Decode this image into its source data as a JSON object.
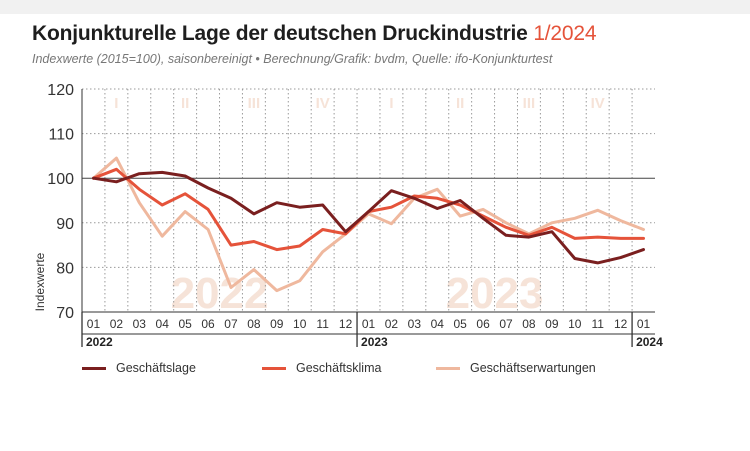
{
  "header": {
    "title": "Konjunkturelle Lage der deutschen Druckindustrie",
    "title_accent": "1/2024",
    "subtitle": "Indexwerte (2015=100), saisonbereinigt • Berechnung/Grafik: bvdm, Quelle: ifo-Konjunkturtest"
  },
  "colors": {
    "geschaeftslage": "#7a1f1f",
    "geschaeftsklima": "#e5533a",
    "geschaeftserwartungen": "#efb89e",
    "watermark": "#f6e3d8",
    "accent": "#e5533a"
  },
  "chart_data": {
    "type": "line",
    "ylabel": "Indexwerte",
    "ylim": [
      70,
      120
    ],
    "yticks": [
      70,
      80,
      90,
      100,
      110,
      120
    ],
    "reference_line": 100,
    "grid": "dotted",
    "legend_position": "bottom",
    "categories": [
      "01",
      "02",
      "03",
      "04",
      "05",
      "06",
      "07",
      "08",
      "09",
      "10",
      "11",
      "12",
      "01",
      "02",
      "03",
      "04",
      "05",
      "06",
      "07",
      "08",
      "09",
      "10",
      "11",
      "12",
      "01"
    ],
    "year_labels": [
      {
        "label": "2022",
        "index": 0
      },
      {
        "label": "2023",
        "index": 12
      },
      {
        "label": "2024",
        "index": 24
      }
    ],
    "watermarks": [
      {
        "label": "2022",
        "from": 0,
        "to": 11
      },
      {
        "label": "2023",
        "from": 12,
        "to": 23
      }
    ],
    "quarters": [
      {
        "label": "I",
        "from": 0,
        "to": 2
      },
      {
        "label": "II",
        "from": 3,
        "to": 5
      },
      {
        "label": "III",
        "from": 6,
        "to": 8
      },
      {
        "label": "IV",
        "from": 9,
        "to": 11
      },
      {
        "label": "I",
        "from": 12,
        "to": 14
      },
      {
        "label": "II",
        "from": 15,
        "to": 17
      },
      {
        "label": "III",
        "from": 18,
        "to": 20
      },
      {
        "label": "IV",
        "from": 21,
        "to": 23
      }
    ],
    "series": [
      {
        "name": "Geschäftserwartungen",
        "key": "geschaeftserwartungen",
        "values": [
          100,
          104.5,
          94.5,
          87,
          92.5,
          88.5,
          75.5,
          79.5,
          74.8,
          77,
          83.5,
          87.5,
          92,
          89.8,
          95.5,
          97.5,
          91.5,
          93,
          90,
          87.5,
          90,
          91,
          92.8,
          90.5,
          88.5
        ]
      },
      {
        "name": "Geschäftsklima",
        "key": "geschaeftsklima",
        "values": [
          100,
          102,
          97.5,
          94,
          96.5,
          93,
          85,
          85.8,
          84,
          84.8,
          88.5,
          87.5,
          92.5,
          93.5,
          96,
          95.5,
          94,
          91.5,
          89,
          87.2,
          89,
          86.5,
          86.8,
          86.5,
          86.5
        ]
      },
      {
        "name": "Geschäftslage",
        "key": "geschaeftslage",
        "values": [
          100,
          99.2,
          101,
          101.3,
          100.5,
          97.8,
          95.5,
          92,
          94.5,
          93.5,
          94,
          88,
          92.5,
          97.2,
          95.5,
          93.2,
          95,
          91,
          87.2,
          86.8,
          88,
          82,
          81,
          82.2,
          84
        ]
      }
    ]
  },
  "legend": [
    {
      "label": "Geschäftslage",
      "key": "geschaeftslage"
    },
    {
      "label": "Geschäftsklima",
      "key": "geschaeftsklima"
    },
    {
      "label": "Geschäftserwartungen",
      "key": "geschaeftserwartungen"
    }
  ]
}
